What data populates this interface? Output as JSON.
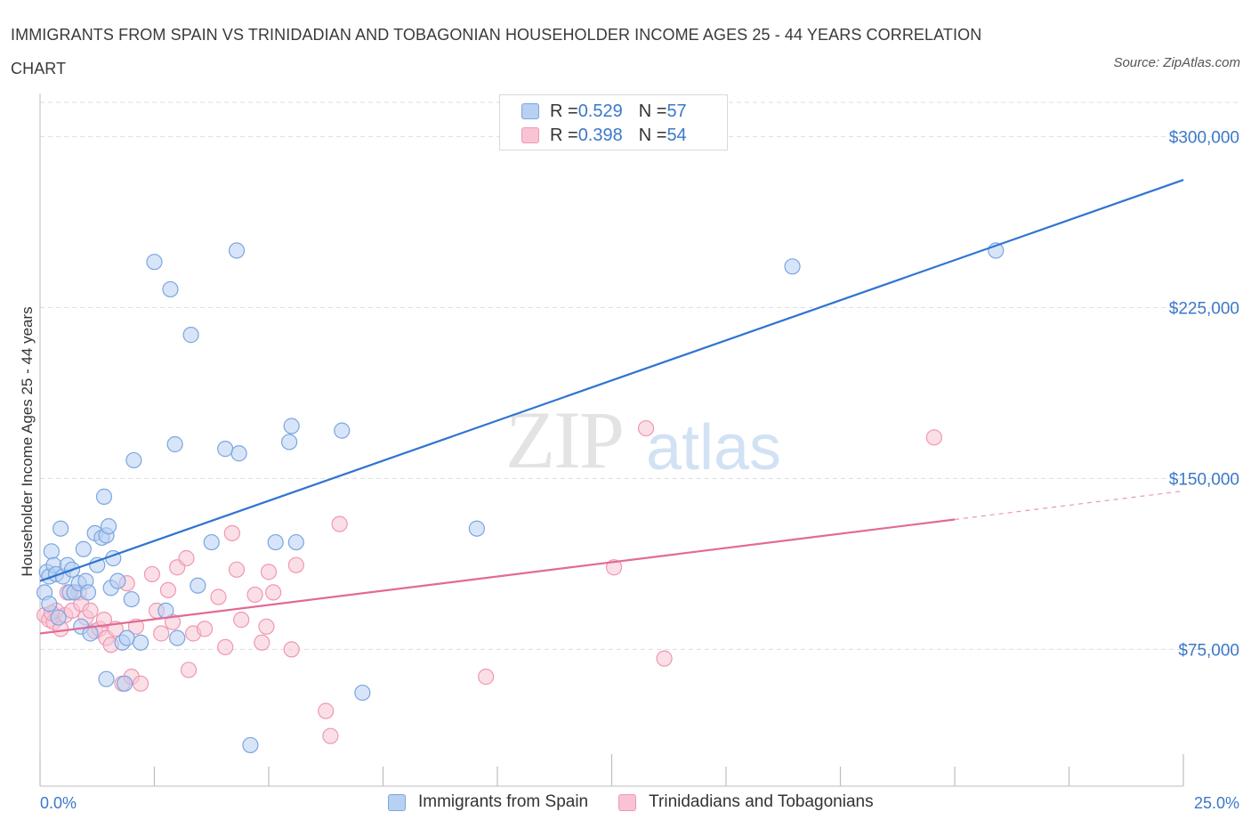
{
  "header": {
    "title": "IMMIGRANTS FROM SPAIN VS TRINIDADIAN AND TOBAGONIAN HOUSEHOLDER INCOME AGES 25 - 44 YEARS CORRELATION CHART",
    "source": "Source: ZipAtlas.com"
  },
  "watermark": {
    "zip": "ZIP",
    "atlas": "atlas"
  },
  "legend": {
    "rows": [
      {
        "r_label": "R = ",
        "r_value": "0.529",
        "n_label": "N = ",
        "n_value": "57"
      },
      {
        "r_label": "R = ",
        "r_value": "0.398",
        "n_label": "N = ",
        "n_value": "54"
      }
    ]
  },
  "colors": {
    "blue_fill": "#b8d0f2",
    "blue_stroke": "#7aa6e0",
    "blue_line": "#2f74d0",
    "pink_fill": "#f8c4d4",
    "pink_stroke": "#ee98b2",
    "pink_line": "#e06b96",
    "grid": "#dddddd",
    "tick_text": "#3b78c9"
  },
  "chart_data": {
    "type": "scatter",
    "title": "IMMIGRANTS FROM SPAIN VS TRINIDADIAN AND TOBAGONIAN HOUSEHOLDER INCOME AGES 25 - 44 YEARS CORRELATION CHART",
    "xlabel": "",
    "ylabel": "Householder Income Ages 25 - 44 years",
    "xlim": [
      0,
      25
    ],
    "ylim": [
      15000,
      315000
    ],
    "x_tick_labels": [
      "0.0%",
      "25.0%"
    ],
    "y_ticks": [
      75000,
      150000,
      225000,
      300000
    ],
    "y_tick_labels": [
      "$75,000",
      "$150,000",
      "$225,000",
      "$300,000"
    ],
    "grid": true,
    "legend_position": "top-center",
    "series": [
      {
        "name": "Immigrants from Spain",
        "R": 0.529,
        "N": 57,
        "trend": {
          "x": [
            0.0,
            25.0
          ],
          "y": [
            105000,
            281000
          ]
        },
        "points": [
          [
            0.1,
            100000
          ],
          [
            0.15,
            109000
          ],
          [
            0.2,
            107000
          ],
          [
            0.25,
            118000
          ],
          [
            0.3,
            112000
          ],
          [
            0.35,
            108000
          ],
          [
            0.4,
            89000
          ],
          [
            0.45,
            128000
          ],
          [
            0.5,
            107000
          ],
          [
            0.6,
            112000
          ],
          [
            0.65,
            100000
          ],
          [
            0.7,
            110000
          ],
          [
            0.75,
            100000
          ],
          [
            0.85,
            104000
          ],
          [
            0.9,
            85000
          ],
          [
            0.95,
            119000
          ],
          [
            1.0,
            105000
          ],
          [
            1.05,
            100000
          ],
          [
            1.1,
            82000
          ],
          [
            1.2,
            126000
          ],
          [
            1.25,
            112000
          ],
          [
            1.35,
            124000
          ],
          [
            1.4,
            142000
          ],
          [
            1.45,
            125000
          ],
          [
            1.5,
            129000
          ],
          [
            1.55,
            102000
          ],
          [
            1.6,
            115000
          ],
          [
            1.7,
            105000
          ],
          [
            1.8,
            78000
          ],
          [
            1.85,
            60000
          ],
          [
            1.9,
            80000
          ],
          [
            2.0,
            97000
          ],
          [
            2.05,
            158000
          ],
          [
            2.2,
            78000
          ],
          [
            2.5,
            245000
          ],
          [
            2.75,
            92000
          ],
          [
            2.85,
            233000
          ],
          [
            2.95,
            165000
          ],
          [
            3.0,
            80000
          ],
          [
            3.3,
            213000
          ],
          [
            3.45,
            103000
          ],
          [
            3.75,
            122000
          ],
          [
            4.05,
            163000
          ],
          [
            4.3,
            250000
          ],
          [
            4.35,
            161000
          ],
          [
            4.6,
            33000
          ],
          [
            5.15,
            122000
          ],
          [
            5.45,
            166000
          ],
          [
            5.5,
            173000
          ],
          [
            5.6,
            122000
          ],
          [
            6.6,
            171000
          ],
          [
            7.05,
            56000
          ],
          [
            9.55,
            128000
          ],
          [
            16.45,
            243000
          ],
          [
            20.9,
            250000
          ],
          [
            0.2,
            95000
          ],
          [
            1.45,
            62000
          ]
        ]
      },
      {
        "name": "Trinidadians and Tobagonians",
        "R": 0.398,
        "N": 54,
        "trend": {
          "x": [
            0.0,
            20.0
          ],
          "y": [
            82000,
            132000
          ]
        },
        "trend_dashed": {
          "x": [
            20.0,
            25.0
          ],
          "y": [
            132000,
            144500
          ]
        },
        "points": [
          [
            0.1,
            90000
          ],
          [
            0.2,
            88000
          ],
          [
            0.3,
            87000
          ],
          [
            0.35,
            92000
          ],
          [
            0.45,
            84000
          ],
          [
            0.55,
            90000
          ],
          [
            0.6,
            100000
          ],
          [
            0.7,
            92000
          ],
          [
            0.85,
            100000
          ],
          [
            0.9,
            95000
          ],
          [
            1.0,
            89000
          ],
          [
            1.1,
            92000
          ],
          [
            1.2,
            83000
          ],
          [
            1.3,
            84000
          ],
          [
            1.4,
            88000
          ],
          [
            1.45,
            80000
          ],
          [
            1.55,
            77000
          ],
          [
            1.65,
            84000
          ],
          [
            1.8,
            60000
          ],
          [
            1.9,
            104000
          ],
          [
            2.0,
            63000
          ],
          [
            2.1,
            85000
          ],
          [
            2.2,
            60000
          ],
          [
            2.45,
            108000
          ],
          [
            2.55,
            92000
          ],
          [
            2.65,
            82000
          ],
          [
            2.8,
            101000
          ],
          [
            2.9,
            87000
          ],
          [
            3.0,
            111000
          ],
          [
            3.2,
            115000
          ],
          [
            3.25,
            66000
          ],
          [
            3.35,
            82000
          ],
          [
            3.6,
            84000
          ],
          [
            3.9,
            98000
          ],
          [
            4.05,
            76000
          ],
          [
            4.2,
            126000
          ],
          [
            4.3,
            110000
          ],
          [
            4.4,
            88000
          ],
          [
            4.7,
            99000
          ],
          [
            4.85,
            78000
          ],
          [
            4.95,
            85000
          ],
          [
            5.0,
            109000
          ],
          [
            5.1,
            100000
          ],
          [
            5.5,
            75000
          ],
          [
            5.6,
            112000
          ],
          [
            6.25,
            48000
          ],
          [
            6.35,
            37000
          ],
          [
            6.55,
            130000
          ],
          [
            9.75,
            63000
          ],
          [
            12.55,
            111000
          ],
          [
            13.25,
            172000
          ],
          [
            13.65,
            71000
          ],
          [
            19.55,
            168000
          ],
          [
            0.25,
            91000
          ]
        ]
      }
    ]
  }
}
